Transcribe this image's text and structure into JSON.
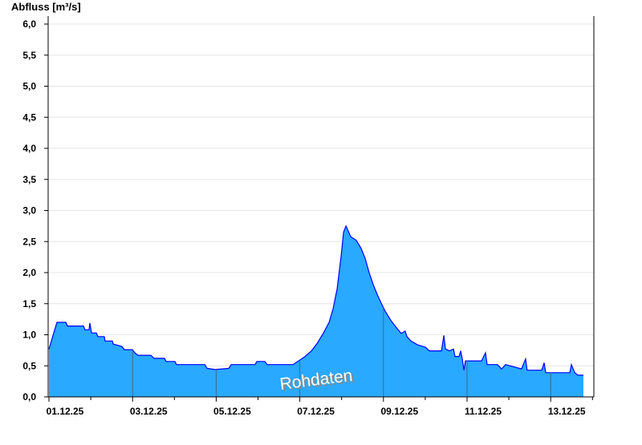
{
  "chart_data": {
    "type": "area",
    "ylabel": "Abfluss [m³/s]",
    "ylim": [
      0,
      6
    ],
    "yticks": [
      "0,0",
      "0,5",
      "1,0",
      "1,5",
      "2,0",
      "2,5",
      "3,0",
      "3,5",
      "4,0",
      "4,5",
      "5,0",
      "5,5",
      "6,0"
    ],
    "xlim": [
      "01.12.25 00:00",
      "14.12.25 00:00"
    ],
    "xticks": [
      "01.12.25",
      "03.12.25",
      "05.12.25",
      "07.12.25",
      "09.12.25",
      "11.12.25",
      "13.12.25"
    ],
    "grid": true,
    "watermark": "Rohdaten",
    "colors": {
      "fill": "#29a9ff",
      "line": "#0000ff",
      "grid": "#e6e6e6"
    },
    "points": [
      [
        "01.12.25 00:00",
        0.77
      ],
      [
        "01.12.25 01:24",
        0.9
      ],
      [
        "01.12.25 03:12",
        1.07
      ],
      [
        "01.12.25 04:36",
        1.2
      ],
      [
        "01.12.25 09:42",
        1.2
      ],
      [
        "01.12.25 10:36",
        1.14
      ],
      [
        "01.12.25 19:48",
        1.14
      ],
      [
        "01.12.25 20:42",
        1.08
      ],
      [
        "01.12.25 23:00",
        1.08
      ],
      [
        "01.12.25 23:30",
        1.19
      ],
      [
        "02.12.25 00:24",
        1.03
      ],
      [
        "02.12.25 03:12",
        1.03
      ],
      [
        "02.12.25 04:06",
        0.97
      ],
      [
        "02.12.25 07:48",
        0.97
      ],
      [
        "02.12.25 08:12",
        0.9
      ],
      [
        "02.12.25 12:24",
        0.9
      ],
      [
        "02.12.25 12:54",
        0.85
      ],
      [
        "02.12.25 17:54",
        0.81
      ],
      [
        "02.12.25 19:18",
        0.76
      ],
      [
        "02.12.25 23:54",
        0.76
      ],
      [
        "03.12.25 01:18",
        0.71
      ],
      [
        "03.12.25 03:06",
        0.67
      ],
      [
        "03.12.25 10:30",
        0.67
      ],
      [
        "03.12.25 12:24",
        0.62
      ],
      [
        "03.12.25 18:18",
        0.62
      ],
      [
        "03.12.25 19:18",
        0.57
      ],
      [
        "04.12.25 00:18",
        0.57
      ],
      [
        "04.12.25 01:12",
        0.52
      ],
      [
        "04.12.25 17:24",
        0.52
      ],
      [
        "04.12.25 18:48",
        0.46
      ],
      [
        "04.12.25 23:24",
        0.44
      ],
      [
        "05.12.25 07:12",
        0.46
      ],
      [
        "05.12.25 08:36",
        0.52
      ],
      [
        "05.12.25 22:24",
        0.52
      ],
      [
        "05.12.25 23:18",
        0.57
      ],
      [
        "06.12.25 03:54",
        0.57
      ],
      [
        "06.12.25 05:18",
        0.52
      ],
      [
        "06.12.25 20:06",
        0.52
      ],
      [
        "06.12.25 23:18",
        0.58
      ],
      [
        "07.12.25 03:00",
        0.65
      ],
      [
        "07.12.25 06:42",
        0.74
      ],
      [
        "07.12.25 09:54",
        0.86
      ],
      [
        "07.12.25 13:36",
        1.03
      ],
      [
        "07.12.25 16:48",
        1.2
      ],
      [
        "07.12.25 19:06",
        1.42
      ],
      [
        "07.12.25 21:24",
        1.74
      ],
      [
        "07.12.25 23:42",
        2.26
      ],
      [
        "08.12.25 01:06",
        2.65
      ],
      [
        "08.12.25 02:30",
        2.75
      ],
      [
        "08.12.25 03:48",
        2.67
      ],
      [
        "08.12.25 05:12",
        2.58
      ],
      [
        "08.12.25 08:24",
        2.52
      ],
      [
        "08.12.25 11:12",
        2.39
      ],
      [
        "08.12.25 13:30",
        2.23
      ],
      [
        "08.12.25 15:48",
        2.0
      ],
      [
        "08.12.25 18:06",
        1.81
      ],
      [
        "08.12.25 20:24",
        1.65
      ],
      [
        "08.12.25 22:42",
        1.51
      ],
      [
        "09.12.25 01:00",
        1.38
      ],
      [
        "09.12.25 04:18",
        1.23
      ],
      [
        "09.12.25 07:54",
        1.1
      ],
      [
        "09.12.25 10:12",
        1.02
      ],
      [
        "09.12.25 12:30",
        1.06
      ],
      [
        "09.12.25 13:30",
        0.97
      ],
      [
        "09.12.25 15:48",
        0.9
      ],
      [
        "09.12.25 19:30",
        0.84
      ],
      [
        "10.12.25 00:06",
        0.8
      ],
      [
        "10.12.25 02:24",
        0.74
      ],
      [
        "10.12.25 09:18",
        0.74
      ],
      [
        "10.12.25 10:12",
        0.9
      ],
      [
        "10.12.25 10:42",
        0.99
      ],
      [
        "10.12.25 11:36",
        0.77
      ],
      [
        "10.12.25 13:54",
        0.74
      ],
      [
        "10.12.25 16:12",
        0.77
      ],
      [
        "10.12.25 17:06",
        0.65
      ],
      [
        "10.12.25 19:24",
        0.65
      ],
      [
        "10.12.25 20:18",
        0.74
      ],
      [
        "10.12.25 21:18",
        0.61
      ],
      [
        "10.12.25 22:12",
        0.43
      ],
      [
        "10.12.25 23:06",
        0.58
      ],
      [
        "11.12.25 08:18",
        0.58
      ],
      [
        "11.12.25 10:36",
        0.71
      ],
      [
        "11.12.25 11:30",
        0.52
      ],
      [
        "11.12.25 17:30",
        0.52
      ],
      [
        "11.12.25 19:48",
        0.45
      ],
      [
        "11.12.25 22:06",
        0.52
      ],
      [
        "12.12.25 07:18",
        0.45
      ],
      [
        "12.12.25 09:36",
        0.61
      ],
      [
        "12.12.25 10:30",
        0.43
      ],
      [
        "12.12.25 18:54",
        0.43
      ],
      [
        "12.12.25 20:12",
        0.55
      ],
      [
        "12.12.25 21:12",
        0.39
      ],
      [
        "13.12.25 11:00",
        0.39
      ],
      [
        "13.12.25 11:54",
        0.52
      ],
      [
        "13.12.25 13:48",
        0.39
      ],
      [
        "13.12.25 15:36",
        0.35
      ],
      [
        "13.12.25 18:48",
        0.35
      ]
    ]
  }
}
